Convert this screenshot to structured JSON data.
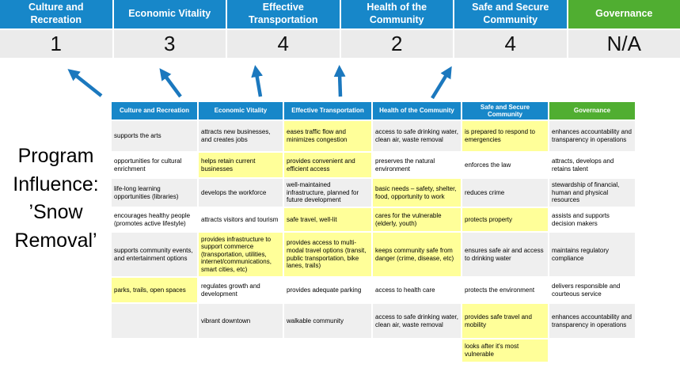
{
  "title": {
    "text": "Program\nInfluence:\n’Snow\nRemoval’"
  },
  "colors": {
    "header_blue": "#1787C9",
    "governance_green": "#50AE31",
    "arrow_blue": "#1B78BE",
    "highlight_yellow": "#FFFF99",
    "score_row_gray": "#EBEBEB",
    "band_gray": "#EFEFEF"
  },
  "priorities": [
    {
      "label": "Culture and Recreation",
      "score": "1"
    },
    {
      "label": "Economic Vitality",
      "score": "3"
    },
    {
      "label": "Effective Transportation",
      "score": "4"
    },
    {
      "label": "Health of the Community",
      "score": "2"
    },
    {
      "label": "Safe and Secure Community",
      "score": "4"
    },
    {
      "label": "Governance",
      "score": "N/A"
    }
  ],
  "matrix": {
    "columns": [
      "Culture and Recreation",
      "Economic Vitality",
      "Effective Transportation",
      "Health of the Community",
      "Safe and Secure Community",
      "Governance"
    ],
    "rows": [
      [
        {
          "text": "supports the arts",
          "highlight": false
        },
        {
          "text": "attracts new businesses, and creates jobs",
          "highlight": false
        },
        {
          "text": "eases traffic flow and minimizes congestion",
          "highlight": true
        },
        {
          "text": "access to safe drinking water, clean air, waste removal",
          "highlight": false
        },
        {
          "text": "is prepared to respond to emergencies",
          "highlight": true
        },
        {
          "text": "enhances accountability and transparency in operations",
          "highlight": false
        }
      ],
      [
        {
          "text": "opportunities for cultural enrichment",
          "highlight": false
        },
        {
          "text": "helps retain current businesses",
          "highlight": true
        },
        {
          "text": "provides convenient and efficient access",
          "highlight": true
        },
        {
          "text": "preserves the natural environment",
          "highlight": false
        },
        {
          "text": "enforces the law",
          "highlight": false
        },
        {
          "text": "attracts, develops and retains talent",
          "highlight": false
        }
      ],
      [
        {
          "text": "life-long learning opportunities (libraries)",
          "highlight": false
        },
        {
          "text": "develops the workforce",
          "highlight": false
        },
        {
          "text": "well-maintained infrastructure, planned for future development",
          "highlight": false
        },
        {
          "text": "basic needs – safety, shelter, food, opportunity to work",
          "highlight": true
        },
        {
          "text": "reduces crime",
          "highlight": false
        },
        {
          "text": "stewardship of financial, human and physical resources",
          "highlight": false
        }
      ],
      [
        {
          "text": "encourages healthy people (promotes active lifestyle)",
          "highlight": false
        },
        {
          "text": "attracts visitors and tourism",
          "highlight": false
        },
        {
          "text": "safe travel, well-lit",
          "highlight": true
        },
        {
          "text": "cares for the vulnerable (elderly, youth)",
          "highlight": true
        },
        {
          "text": "protects property",
          "highlight": true
        },
        {
          "text": "assists and supports decision makers",
          "highlight": false
        }
      ],
      [
        {
          "text": "supports community events, and entertainment options",
          "highlight": false
        },
        {
          "text": "provides infrastructure to support commerce (transportation, utilities, internet/communications, smart cities, etc)",
          "highlight": true
        },
        {
          "text": "provides access to multi-modal travel options (transit, public transportation, bike lanes, trails)",
          "highlight": true
        },
        {
          "text": "keeps community safe from danger (crime, disease, etc)",
          "highlight": true
        },
        {
          "text": "ensures safe air and access to drinking water",
          "highlight": false
        },
        {
          "text": "maintains regulatory compliance",
          "highlight": false
        }
      ],
      [
        {
          "text": "parks, trails, open spaces",
          "highlight": true
        },
        {
          "text": "regulates growth and development",
          "highlight": false
        },
        {
          "text": "provides adequate parking",
          "highlight": false
        },
        {
          "text": "access to health care",
          "highlight": false
        },
        {
          "text": "protects the environment",
          "highlight": false
        },
        {
          "text": "delivers responsible and courteous service",
          "highlight": false
        }
      ],
      [
        {
          "text": "",
          "highlight": false
        },
        {
          "text": "vibrant downtown",
          "highlight": false
        },
        {
          "text": "walkable community",
          "highlight": false
        },
        {
          "text": "access to safe drinking water, clean air, waste removal",
          "highlight": false
        },
        {
          "text": "provides safe travel and mobility",
          "highlight": true
        },
        {
          "text": "enhances accountability and transparency in operations",
          "highlight": false
        }
      ],
      [
        {
          "text": "",
          "highlight": false
        },
        {
          "text": "",
          "highlight": false
        },
        {
          "text": "",
          "highlight": false
        },
        {
          "text": "",
          "highlight": false
        },
        {
          "text": "looks after it's most vulnerable",
          "highlight": true
        },
        {
          "text": "",
          "highlight": false
        }
      ]
    ]
  }
}
